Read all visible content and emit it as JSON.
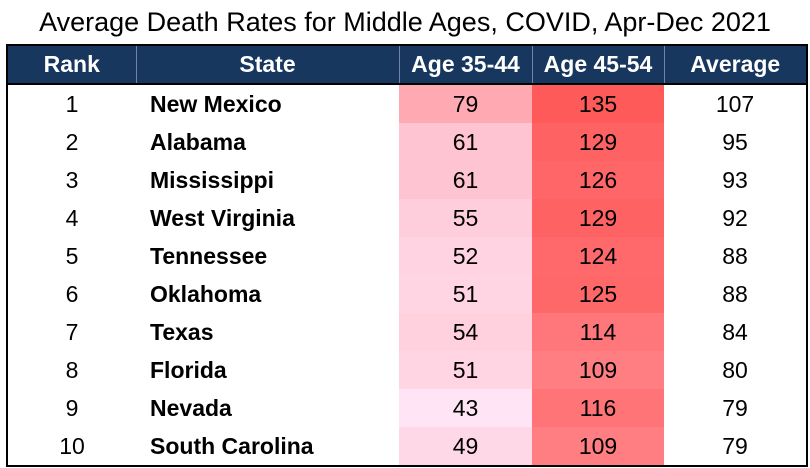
{
  "title": "Average Death Rates for Middle Ages, COVID, Apr-Dec 2021",
  "columns": [
    "Rank",
    "State",
    "Age 35-44",
    "Age 45-54",
    "Average"
  ],
  "chart_data": {
    "type": "table",
    "title": "Average Death Rates for Middle Ages, COVID, Apr-Dec 2021",
    "columns": [
      "Rank",
      "State",
      "Age 35-44",
      "Age 45-54",
      "Average"
    ],
    "rows": [
      {
        "rank": "1",
        "state": "New Mexico",
        "age_35_44": "79",
        "age_45_54": "135",
        "average": "107"
      },
      {
        "rank": "2",
        "state": "Alabama",
        "age_35_44": "61",
        "age_45_54": "129",
        "average": "95"
      },
      {
        "rank": "3",
        "state": "Mississippi",
        "age_35_44": "61",
        "age_45_54": "126",
        "average": "93"
      },
      {
        "rank": "4",
        "state": "West Virginia",
        "age_35_44": "55",
        "age_45_54": "129",
        "average": "92"
      },
      {
        "rank": "5",
        "state": "Tennessee",
        "age_35_44": "52",
        "age_45_54": "124",
        "average": "88"
      },
      {
        "rank": "6",
        "state": "Oklahoma",
        "age_35_44": "51",
        "age_45_54": "125",
        "average": "88"
      },
      {
        "rank": "7",
        "state": "Texas",
        "age_35_44": "54",
        "age_45_54": "114",
        "average": "84"
      },
      {
        "rank": "8",
        "state": "Florida",
        "age_35_44": "51",
        "age_45_54": "109",
        "average": "80"
      },
      {
        "rank": "9",
        "state": "Nevada",
        "age_35_44": "43",
        "age_45_54": "116",
        "average": "79"
      },
      {
        "rank": "10",
        "state": "South Carolina",
        "age_35_44": "49",
        "age_45_54": "109",
        "average": "79"
      }
    ],
    "color_scale": {
      "low": "#FFE4F5",
      "high": "#FF5A5A",
      "applies_to": [
        "Age 35-44",
        "Age 45-54"
      ]
    }
  },
  "colors": {
    "header_bg": "#17375E",
    "header_text": "#FFFFFF"
  }
}
